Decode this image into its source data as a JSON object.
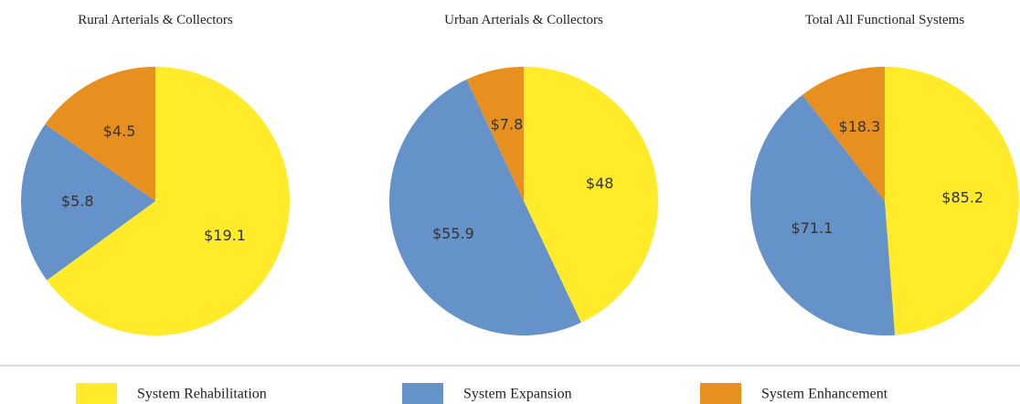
{
  "chart_data": [
    {
      "type": "pie",
      "title": "Rural Arterials & Collectors",
      "categories": [
        "System Rehabilitation",
        "System Expansion",
        "System Enhancement"
      ],
      "values": [
        19.1,
        5.8,
        4.5
      ],
      "value_labels": [
        "$19.1",
        "$5.8",
        "$4.5"
      ],
      "colors": [
        "#ffeb2a",
        "#6592c8",
        "#e8901f"
      ]
    },
    {
      "type": "pie",
      "title": "Urban Arterials & Collectors",
      "categories": [
        "System Rehabilitation",
        "System Expansion",
        "System Enhancement"
      ],
      "values": [
        48,
        55.9,
        7.8
      ],
      "value_labels": [
        "$48",
        "$55.9",
        "$7.8"
      ],
      "colors": [
        "#ffeb2a",
        "#6592c8",
        "#e8901f"
      ]
    },
    {
      "type": "pie",
      "title": "Total All Functional Systems",
      "categories": [
        "System Rehabilitation",
        "System Expansion",
        "System Enhancement"
      ],
      "values": [
        85.2,
        71.1,
        18.3
      ],
      "value_labels": [
        "$85.2",
        "$71.1",
        "$18.3"
      ],
      "colors": [
        "#ffeb2a",
        "#6592c8",
        "#e8901f"
      ]
    }
  ]
}
